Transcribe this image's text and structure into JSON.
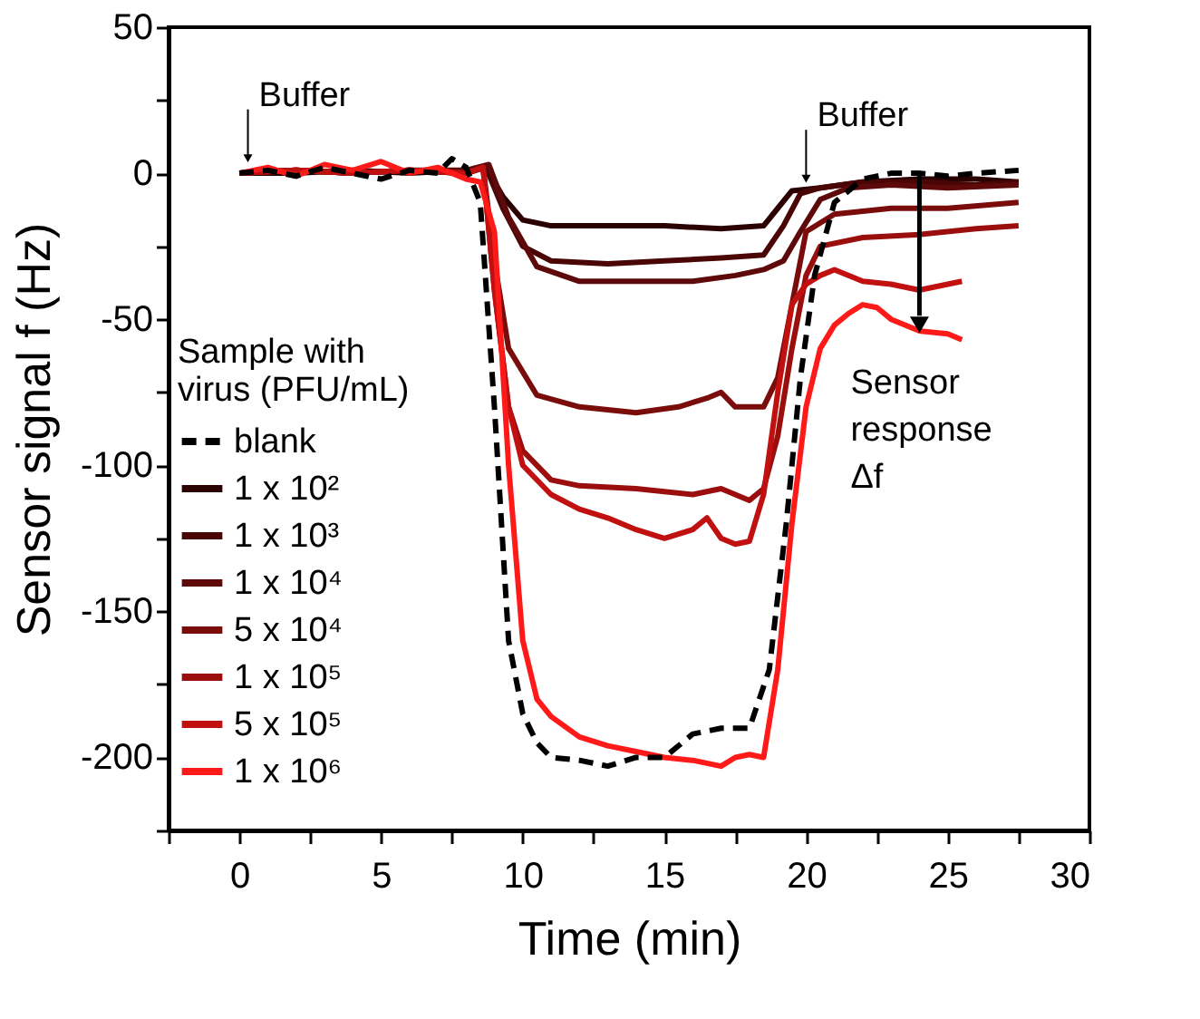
{
  "chart_data": {
    "type": "line",
    "xlabel": "Time (min)",
    "ylabel": "Sensor signal f (Hz)",
    "xlim": [
      -2.5,
      30
    ],
    "ylim": [
      -225,
      50
    ],
    "xticks": [
      {
        "value": -2.5,
        "label": null
      },
      0,
      {
        "value": 2.5,
        "label": null
      },
      5,
      {
        "value": 7.5,
        "label": null
      },
      10,
      {
        "value": 12.5,
        "label": null
      },
      15,
      {
        "value": 17.5,
        "label": null
      },
      20,
      {
        "value": 22.5,
        "label": null
      },
      25,
      {
        "value": 27.5,
        "label": null
      },
      30
    ],
    "yticks": [
      {
        "value": -225,
        "label": null
      },
      -200,
      {
        "value": -175,
        "label": null
      },
      -150,
      {
        "value": -125,
        "label": null
      },
      -100,
      {
        "value": -75,
        "label": null
      },
      -50,
      {
        "value": -25,
        "label": null
      },
      0,
      {
        "value": 25,
        "label": null
      },
      50
    ],
    "grid": false,
    "legend": "left",
    "marker": "none",
    "line_style": "solid",
    "legend_title": "Sample with virus (PFU/mL)",
    "annotations": [
      {
        "text": "Buffer",
        "x": 0.3,
        "y": 2
      },
      {
        "text": "Buffer",
        "x": 20,
        "y": -5
      },
      {
        "text": "Sensor response Δf",
        "x": 24,
        "y": -55
      }
    ],
    "series": [
      {
        "name": "blank",
        "color": "#000000",
        "line_style": "dashed",
        "x": [
          0,
          1,
          2,
          3,
          4,
          5,
          6,
          7,
          7.5,
          8,
          8.5,
          9,
          9.5,
          10,
          10.5,
          11,
          12,
          13,
          14,
          15,
          16,
          17,
          18,
          18.7,
          19.3,
          19.8,
          20.3,
          21,
          22,
          23,
          24,
          25,
          26,
          27.5
        ],
        "values": [
          0,
          1,
          -1,
          2,
          0,
          -2,
          1,
          0,
          5,
          2,
          -10,
          -80,
          -160,
          -185,
          -195,
          -200,
          -201,
          -203,
          -200,
          -200,
          -192,
          -190,
          -190,
          -170,
          -120,
          -70,
          -35,
          -10,
          -2,
          0,
          0,
          -1,
          0,
          1
        ]
      },
      {
        "name": "1 x 10²",
        "color": "#2b0000",
        "x": [
          0,
          2,
          4,
          6,
          8,
          8.7,
          9.3,
          10,
          11,
          13,
          15,
          17,
          18.5,
          19,
          19.5,
          20.5,
          22,
          24,
          26,
          27.5
        ],
        "values": [
          0,
          0,
          1,
          0,
          1,
          2,
          -8,
          -16,
          -18,
          -18,
          -18,
          -19,
          -18,
          -12,
          -6,
          -5,
          -3,
          -2,
          -2,
          -3
        ]
      },
      {
        "name": "1 x 10³",
        "color": "#4a0505",
        "x": [
          0,
          2,
          4,
          6,
          8,
          8.7,
          9.3,
          10,
          11,
          13,
          15,
          17,
          18.5,
          19.2,
          19.8,
          20.5,
          22,
          24,
          26,
          27.5
        ],
        "values": [
          0,
          1,
          0,
          1,
          0,
          2,
          -12,
          -25,
          -30,
          -31,
          -30,
          -29,
          -28,
          -18,
          -7,
          -5,
          -3,
          -3,
          -4,
          -3
        ]
      },
      {
        "name": "1 x 10⁴",
        "color": "#5e0a0a",
        "x": [
          0,
          2,
          4,
          6,
          8,
          8.8,
          9.5,
          10.5,
          12,
          14,
          16,
          17.5,
          18.5,
          19.2,
          19.8,
          20.5,
          21.5,
          23,
          25,
          27.5
        ],
        "values": [
          0,
          1,
          0,
          1,
          1,
          3,
          -15,
          -32,
          -37,
          -37,
          -37,
          -35,
          -33,
          -30,
          -20,
          -9,
          -5,
          -4,
          -5,
          -4
        ]
      },
      {
        "name": "5 x 10⁴",
        "color": "#7a0c0c",
        "x": [
          0,
          2,
          4,
          6,
          8,
          8.6,
          9,
          9.5,
          10.5,
          12,
          14,
          15.5,
          16.5,
          17,
          17.5,
          18.5,
          19,
          19.5,
          20,
          21,
          23,
          25,
          27.5
        ],
        "values": [
          0,
          1,
          0,
          1,
          0,
          2,
          -30,
          -60,
          -76,
          -80,
          -82,
          -80,
          -77,
          -75,
          -80,
          -80,
          -70,
          -45,
          -20,
          -14,
          -12,
          -12,
          -10
        ]
      },
      {
        "name": "1 x 10⁵",
        "color": "#9a0e0e",
        "x": [
          0,
          2,
          4,
          6,
          8,
          8.6,
          9,
          9.5,
          10,
          11,
          12,
          14,
          16,
          17,
          18,
          18.5,
          19,
          19.5,
          20,
          20.5,
          22,
          24,
          26,
          27.5
        ],
        "values": [
          0,
          1,
          0,
          1,
          0,
          2,
          -40,
          -80,
          -95,
          -105,
          -107,
          -108,
          -110,
          -108,
          -112,
          -108,
          -90,
          -60,
          -35,
          -25,
          -22,
          -21,
          -19,
          -18
        ]
      },
      {
        "name": "5 x 10⁵",
        "color": "#c01010",
        "x": [
          0,
          2,
          4,
          6,
          8,
          8.6,
          9,
          9.5,
          10,
          11,
          12,
          13,
          14,
          15,
          16,
          16.5,
          17,
          17.5,
          18,
          18.5,
          19,
          19.5,
          20,
          20.5,
          21,
          22,
          23,
          24,
          25,
          25.5
        ],
        "values": [
          0,
          1,
          0,
          1,
          0,
          2,
          -40,
          -80,
          -100,
          -110,
          -115,
          -118,
          -122,
          -125,
          -122,
          -118,
          -125,
          -127,
          -126,
          -110,
          -75,
          -45,
          -38,
          -35,
          -33,
          -37,
          -38,
          -40,
          -38,
          -37
        ]
      },
      {
        "name": "1 x 10⁶",
        "color": "#ff1a1a",
        "x": [
          0,
          1,
          2,
          3,
          4,
          5,
          6,
          7,
          8,
          8.5,
          9,
          9.5,
          10,
          10.5,
          11,
          12,
          13,
          14,
          15,
          16,
          17,
          17.5,
          18,
          18.5,
          19,
          19.5,
          20,
          20.5,
          21,
          21.5,
          22,
          22.5,
          23,
          24,
          25,
          25.5
        ],
        "values": [
          0,
          2,
          -1,
          3,
          1,
          4,
          0,
          2,
          -2,
          -3,
          -20,
          -100,
          -160,
          -180,
          -186,
          -193,
          -196,
          -198,
          -200,
          -201,
          -203,
          -200,
          -199,
          -200,
          -170,
          -120,
          -80,
          -60,
          -52,
          -48,
          -45,
          -46,
          -50,
          -54,
          -55,
          -57
        ]
      }
    ]
  }
}
